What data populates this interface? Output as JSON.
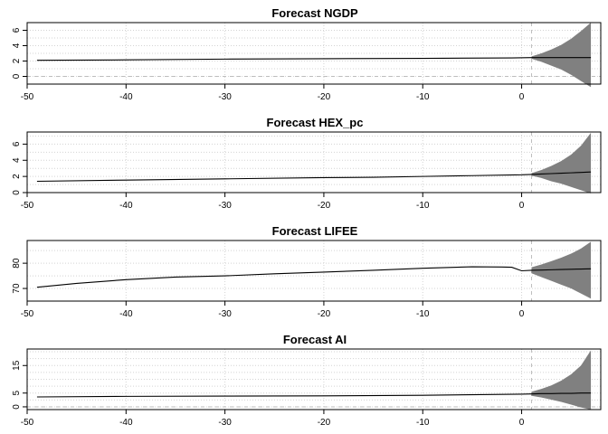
{
  "chart_data": [
    {
      "type": "line",
      "title": "Forecast NGDP",
      "xlim": [
        -50,
        8
      ],
      "ylim": [
        -1,
        7
      ],
      "xticks": [
        -50,
        -40,
        -30,
        -20,
        -10,
        0
      ],
      "yticks": [
        0,
        2,
        4,
        6
      ],
      "grid": true,
      "history": {
        "x": [
          -49,
          -40,
          -30,
          -20,
          -10,
          -1,
          1
        ],
        "y": [
          2.1,
          2.15,
          2.25,
          2.3,
          2.35,
          2.4,
          2.45
        ]
      },
      "forecast": {
        "x": [
          1,
          2,
          3,
          4,
          5,
          6,
          7
        ],
        "mean": [
          2.45,
          2.45,
          2.45,
          2.45,
          2.45,
          2.45,
          2.45
        ],
        "lower": [
          2.3,
          1.9,
          1.4,
          0.9,
          0.2,
          -0.6,
          -1.4
        ],
        "upper": [
          2.6,
          3.0,
          3.5,
          4.1,
          4.9,
          5.9,
          7.0
        ]
      }
    },
    {
      "type": "line",
      "title": "Forecast HEX_pc",
      "xlim": [
        -50,
        8
      ],
      "ylim": [
        0,
        7.5
      ],
      "xticks": [
        -50,
        -40,
        -30,
        -20,
        -10,
        0
      ],
      "yticks": [
        0,
        2,
        4,
        6
      ],
      "grid": true,
      "history": {
        "x": [
          -49,
          -40,
          -30,
          -20,
          -15,
          -10,
          -5,
          0,
          1
        ],
        "y": [
          1.4,
          1.55,
          1.7,
          1.85,
          1.9,
          2.0,
          2.1,
          2.2,
          2.25
        ]
      },
      "forecast": {
        "x": [
          1,
          2,
          3,
          4,
          5,
          6,
          7
        ],
        "mean": [
          2.25,
          2.3,
          2.35,
          2.4,
          2.45,
          2.5,
          2.55
        ],
        "lower": [
          2.1,
          1.8,
          1.4,
          1.1,
          0.7,
          0.3,
          -0.1
        ],
        "upper": [
          2.4,
          2.8,
          3.3,
          3.9,
          4.7,
          5.8,
          7.4
        ]
      }
    },
    {
      "type": "line",
      "title": "Forecast LIFEE",
      "xlim": [
        -50,
        8
      ],
      "ylim": [
        65,
        89
      ],
      "xticks": [
        -50,
        -40,
        -30,
        -20,
        -10,
        0
      ],
      "yticks": [
        70,
        80
      ],
      "grid": true,
      "history": {
        "x": [
          -49,
          -45,
          -40,
          -35,
          -30,
          -25,
          -20,
          -15,
          -10,
          -5,
          -2,
          -1,
          0,
          1
        ],
        "y": [
          70.5,
          72.0,
          73.5,
          74.5,
          75.0,
          75.8,
          76.5,
          77.2,
          78.0,
          78.6,
          78.5,
          78.4,
          77.0,
          77.2
        ]
      },
      "forecast": {
        "x": [
          1,
          2,
          3,
          4,
          5,
          6,
          7
        ],
        "mean": [
          77.2,
          77.3,
          77.4,
          77.5,
          77.6,
          77.7,
          77.8
        ],
        "lower": [
          76.0,
          74.5,
          73.0,
          71.5,
          70.0,
          68.0,
          66.0
        ],
        "upper": [
          78.4,
          79.5,
          80.8,
          82.2,
          83.8,
          85.8,
          88.5
        ]
      }
    },
    {
      "type": "line",
      "title": "Forecast AI",
      "xlim": [
        -50,
        8
      ],
      "ylim": [
        -1,
        21
      ],
      "xticks": [
        -50,
        -40,
        -30,
        -20,
        -10,
        0
      ],
      "yticks": [
        0,
        5,
        15
      ],
      "grid": true,
      "history": {
        "x": [
          -49,
          -40,
          -30,
          -20,
          -10,
          0,
          1
        ],
        "y": [
          3.6,
          3.8,
          3.9,
          4.0,
          4.2,
          4.6,
          4.7
        ]
      },
      "forecast": {
        "x": [
          1,
          2,
          3,
          4,
          5,
          6,
          7
        ],
        "mean": [
          4.7,
          4.8,
          4.8,
          4.9,
          4.9,
          5.0,
          5.0
        ],
        "lower": [
          4.0,
          3.4,
          2.6,
          1.8,
          0.8,
          -0.2,
          -1.0
        ],
        "upper": [
          5.5,
          6.5,
          7.8,
          9.5,
          11.8,
          15.0,
          20.5
        ]
      }
    }
  ]
}
